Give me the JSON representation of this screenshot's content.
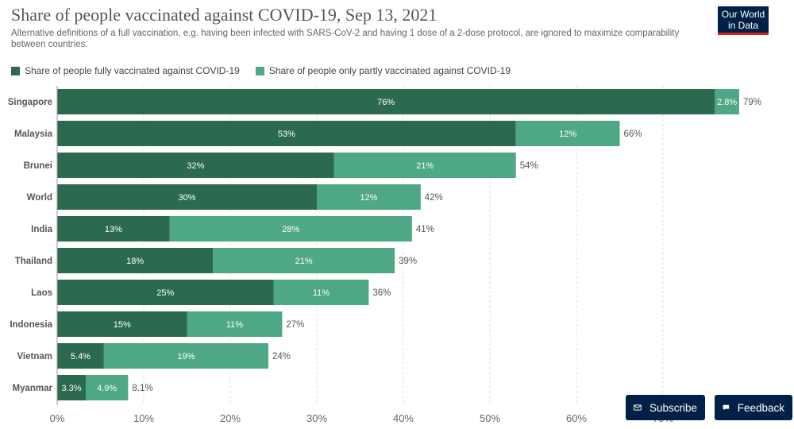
{
  "header": {
    "title": "Share of people vaccinated against COVID-19, Sep 13, 2021",
    "subtitle": "Alternative definitions of a full vaccination, e.g. having been infected with SARS-CoV-2 and having 1 dose of a 2-dose protocol, are ignored to maximize comparability between countries.",
    "logo_line1": "Our World",
    "logo_line2": "in Data"
  },
  "buttons": {
    "subscribe": "Subscribe",
    "feedback": "Feedback"
  },
  "colors": {
    "fully": "#2b6a4f",
    "partly": "#4fa885",
    "logo_bg": "#002147",
    "logo_accent": "#ce261e"
  },
  "chart_data": {
    "type": "bar",
    "orientation": "horizontal",
    "stacked": true,
    "categories": [
      "Singapore",
      "Malaysia",
      "Brunei",
      "World",
      "India",
      "Thailand",
      "Laos",
      "Indonesia",
      "Vietnam",
      "Myanmar"
    ],
    "series": [
      {
        "name": "Share of people fully vaccinated against COVID-19",
        "values": [
          76,
          53,
          32,
          30,
          13,
          18,
          25,
          15,
          5.4,
          3.3
        ],
        "labels": [
          "76%",
          "53%",
          "32%",
          "30%",
          "13%",
          "18%",
          "25%",
          "15%",
          "5.4%",
          "3.3%"
        ]
      },
      {
        "name": "Share of people only partly vaccinated against COVID-19",
        "values": [
          2.8,
          12,
          21,
          12,
          28,
          21,
          11,
          11,
          19,
          4.9
        ],
        "labels": [
          "2.8%",
          "12%",
          "21%",
          "12%",
          "28%",
          "21%",
          "11%",
          "11%",
          "19%",
          "4.9%"
        ]
      }
    ],
    "totals": [
      "79%",
      "66%",
      "54%",
      "42%",
      "41%",
      "39%",
      "36%",
      "27%",
      "24%",
      "8.1%"
    ],
    "xlim": [
      0,
      80
    ],
    "xticks": [
      0,
      10,
      20,
      30,
      40,
      50,
      60,
      70
    ],
    "xtick_labels": [
      "0%",
      "10%",
      "20%",
      "30%",
      "40%",
      "50%",
      "60%",
      "70%"
    ],
    "grid": "vertical dashed",
    "legend_position": "top-left"
  }
}
